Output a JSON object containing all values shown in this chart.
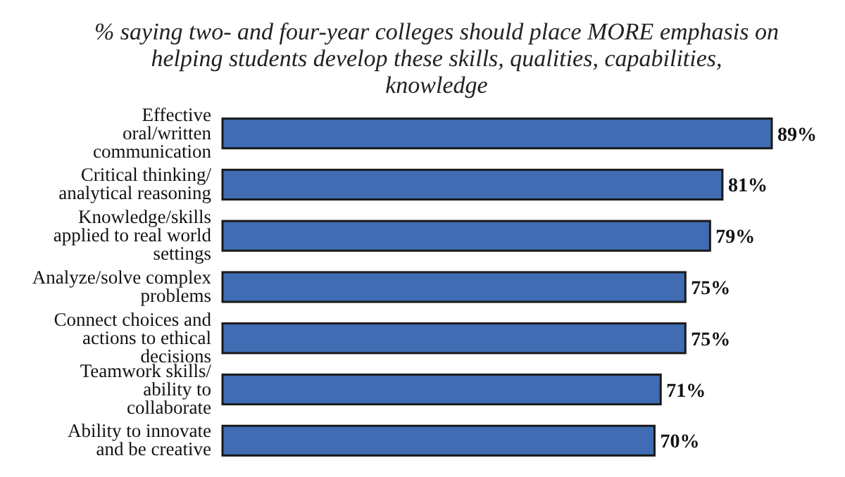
{
  "chart_data": {
    "type": "bar",
    "orientation": "horizontal",
    "subtitle": "% saying two- and four-year colleges should place MORE emphasis on helping students develop these skills, qualities, capabilities, knowledge",
    "categories": [
      "Effective oral/written communication",
      "Critical thinking/ analytical reasoning",
      "Knowledge/skills applied to real world settings",
      "Analyze/solve complex problems",
      "Connect choices and actions to ethical decisions",
      "Teamwork skills/ ability to collaborate",
      "Ability to innovate and be creative"
    ],
    "values": [
      89,
      81,
      79,
      75,
      75,
      71,
      70
    ],
    "color": "#3f6cb3",
    "value_labels": [
      "89%",
      "81%",
      "79%",
      "75%",
      "75%",
      "71%",
      "70%"
    ]
  }
}
